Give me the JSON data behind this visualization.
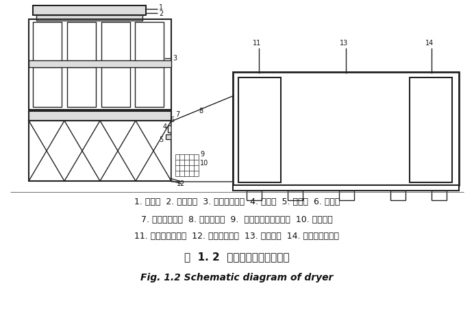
{
  "bg_color": "#ffffff",
  "line_color": "#222222",
  "title_cn": "图  1. 2  混联式烘干机结构简图",
  "title_en": "Fig. 1.2 Schematic diagram of dryer",
  "caption_line1": "1. 进风筒  2. 连接导口  3. 太阳能集热器  4. 导风筒  5. 支撑架  6. 配风口",
  "caption_line2": "7. 离心式鼓风机  8. 电加热装置  9.  离心式鼓风机支撑架  10. 电控装置",
  "caption_line3": "11. 换热装置出料口  12. 换热装置底脚  13. 换热装置  14. 换热装置进料口",
  "figsize": [
    6.92,
    4.74
  ],
  "dpi": 100
}
